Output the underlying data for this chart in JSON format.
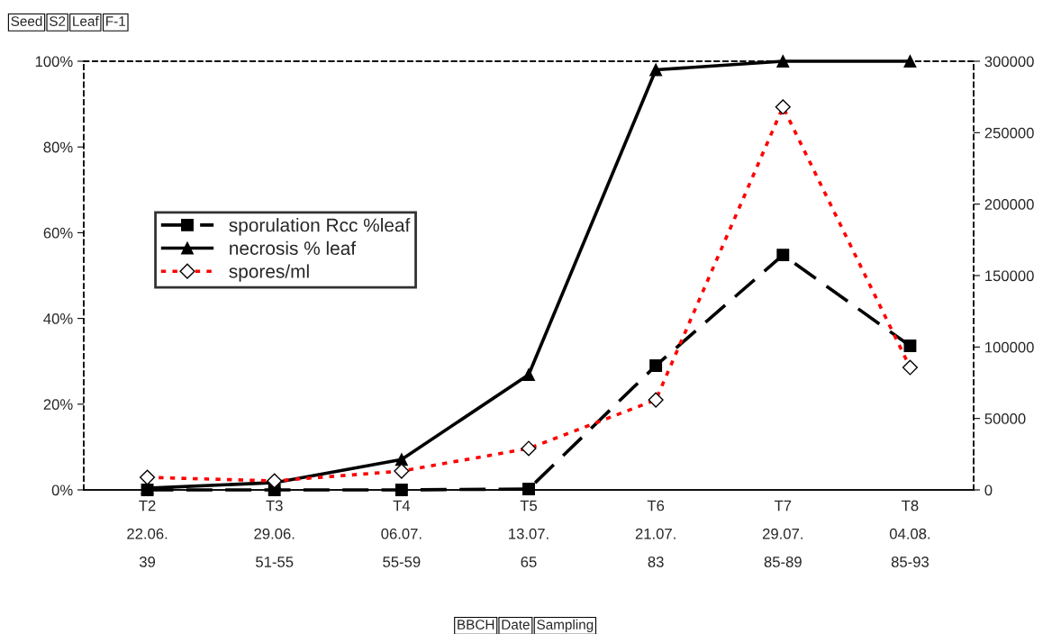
{
  "chart_data": {
    "type": "line",
    "categories": [
      "T2\n22.06.\n39",
      "T3\n29.06.\n51-55",
      "T4\n06.07.\n55-59",
      "T5\n13.07.\n65",
      "T6\n21.07.\n83",
      "T7\n29.07.\n85-89",
      "T8\n04.08.\n85-93"
    ],
    "series": [
      {
        "name": "sporulation Rcc %leaf",
        "color": "#000000",
        "marker": "square",
        "line_style": "dashed",
        "values": [
          0,
          0,
          0,
          0.2,
          29,
          54.8,
          33.6
        ]
      },
      {
        "name": "necrosis % leaf",
        "color": "#000000",
        "marker": "triangle",
        "line_style": "solid",
        "values": [
          0.4,
          1.7,
          7.1,
          26.9,
          98,
          100,
          100
        ]
      },
      {
        "name": "spores/ml",
        "color": "#ff0000",
        "marker": "diamond",
        "line_style": "dotted",
        "axis": "y2",
        "values": [
          8800,
          6300,
          13200,
          29000,
          63000,
          268000,
          85700
        ]
      }
    ],
    "ylim": [
      0,
      100
    ],
    "yticks": [
      {
        "value": 0,
        "label": "0%"
      },
      {
        "value": 20,
        "label": "20%"
      },
      {
        "value": 40,
        "label": "40%"
      },
      {
        "value": 60,
        "label": "60%"
      },
      {
        "value": 80,
        "label": "80%"
      },
      {
        "value": 100,
        "label": "100%"
      }
    ],
    "y2lim": [
      0,
      300000
    ],
    "y2ticks": [
      0,
      50000,
      100000,
      150000,
      200000,
      250000,
      300000
    ],
    "legend": "left",
    "grid": false,
    "annotations": [
      "Seed",
      "S2",
      "Leaf",
      "F-1",
      "BBCH",
      "Date",
      "Sampling"
    ]
  }
}
